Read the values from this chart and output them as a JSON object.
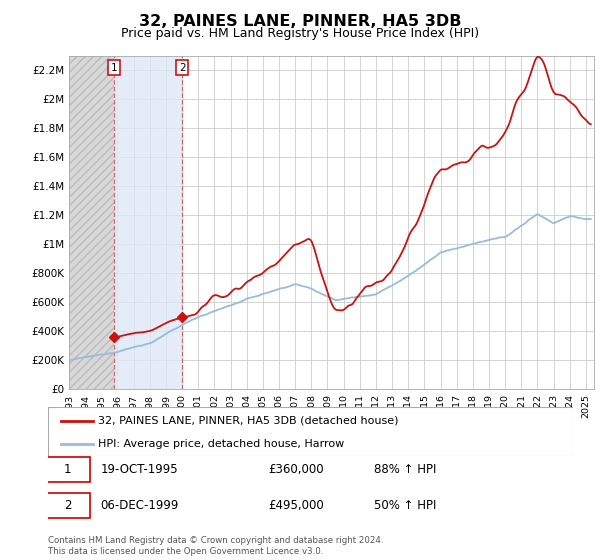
{
  "title": "32, PAINES LANE, PINNER, HA5 3DB",
  "subtitle": "Price paid vs. HM Land Registry's House Price Index (HPI)",
  "title_fontsize": 11.5,
  "subtitle_fontsize": 9,
  "ylim": [
    0,
    2300000
  ],
  "yticks": [
    0,
    200000,
    400000,
    600000,
    800000,
    1000000,
    1200000,
    1400000,
    1600000,
    1800000,
    2000000,
    2200000
  ],
  "ytick_labels": [
    "£0",
    "£200K",
    "£400K",
    "£600K",
    "£800K",
    "£1M",
    "£1.2M",
    "£1.4M",
    "£1.6M",
    "£1.8M",
    "£2M",
    "£2.2M"
  ],
  "xlim_start": 1993.0,
  "xlim_end": 2025.5,
  "xtick_years": [
    1993,
    1994,
    1995,
    1996,
    1997,
    1998,
    1999,
    2000,
    2001,
    2002,
    2003,
    2004,
    2005,
    2006,
    2007,
    2008,
    2009,
    2010,
    2011,
    2012,
    2013,
    2014,
    2015,
    2016,
    2017,
    2018,
    2019,
    2020,
    2021,
    2022,
    2023,
    2024,
    2025
  ],
  "sale1_x": 1995.8,
  "sale1_y": 360000,
  "sale1_label": "1",
  "sale1_date": "19-OCT-1995",
  "sale1_price": "£360,000",
  "sale1_hpi": "88% ↑ HPI",
  "sale2_x": 2000.0,
  "sale2_y": 495000,
  "sale2_label": "2",
  "sale2_date": "06-DEC-1999",
  "sale2_price": "£495,000",
  "sale2_hpi": "50% ↑ HPI",
  "line_color_property": "#cc1111",
  "line_color_hpi": "#99bbdd",
  "marker_color": "#cc1111",
  "legend1_label": "32, PAINES LANE, PINNER, HA5 3DB (detached house)",
  "legend2_label": "HPI: Average price, detached house, Harrow",
  "footnote1": "Contains HM Land Registry data © Crown copyright and database right 2024.",
  "footnote2": "This data is licensed under the Open Government Licence v3.0.",
  "hatch_color": "#d8d8d8",
  "shade_color": "#dce8f5"
}
